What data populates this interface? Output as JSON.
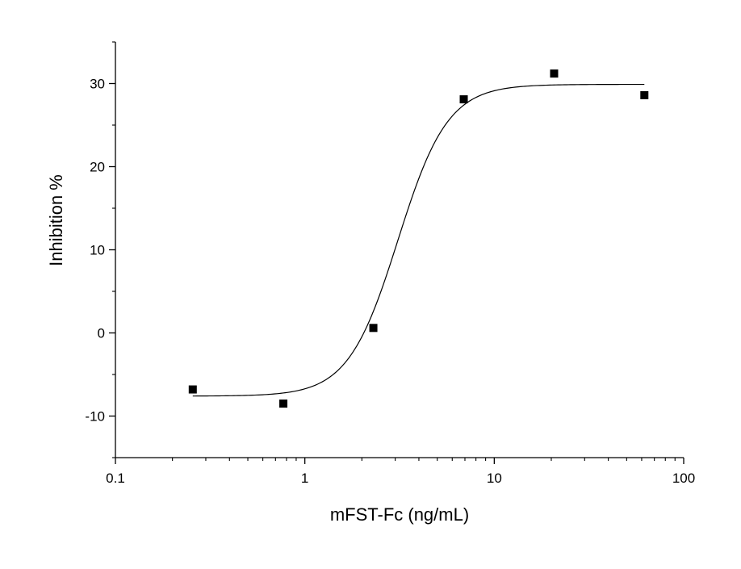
{
  "chart_data": {
    "type": "scatter",
    "xlabel": "mFST-Fc (ng/mL)",
    "ylabel": "Inhibition %",
    "x_scale": "log",
    "xlim": [
      0.1,
      100
    ],
    "ylim": [
      -15,
      35
    ],
    "x_ticks": [
      {
        "value": 0.1,
        "label": "0.1"
      },
      {
        "value": 1,
        "label": "1"
      },
      {
        "value": 10,
        "label": "10"
      },
      {
        "value": 100,
        "label": "100"
      }
    ],
    "y_ticks": [
      {
        "value": -10,
        "label": "-10"
      },
      {
        "value": 0,
        "label": "0"
      },
      {
        "value": 10,
        "label": "10"
      },
      {
        "value": 20,
        "label": "20"
      },
      {
        "value": 30,
        "label": "30"
      }
    ],
    "series": [
      {
        "marker": "square",
        "color": "#000000",
        "points": [
          {
            "x": 0.256,
            "y": -6.8
          },
          {
            "x": 0.77,
            "y": -8.5
          },
          {
            "x": 2.3,
            "y": 0.6
          },
          {
            "x": 6.9,
            "y": 28.1
          },
          {
            "x": 20.7,
            "y": 31.2
          },
          {
            "x": 62,
            "y": 28.6
          }
        ]
      }
    ],
    "fit_curve": {
      "model": "logistic",
      "bottom": -7.6,
      "top": 29.9,
      "ec50": 3.1,
      "hill": 3.3,
      "x_range": [
        0.256,
        62
      ],
      "color": "#000000"
    },
    "grid": false,
    "legend": "none"
  }
}
